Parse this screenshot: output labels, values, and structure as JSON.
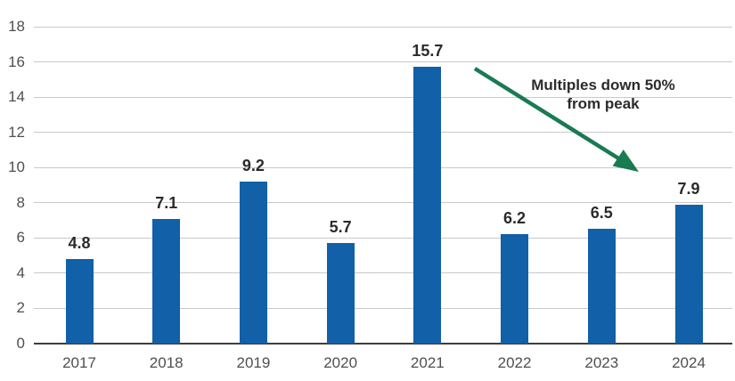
{
  "chart_data": {
    "type": "bar",
    "categories": [
      "2017",
      "2018",
      "2019",
      "2020",
      "2021",
      "2022",
      "2023",
      "2024"
    ],
    "values": [
      4.8,
      7.1,
      9.2,
      5.7,
      15.7,
      6.2,
      6.5,
      7.9
    ],
    "value_labels": [
      "4.8",
      "7.1",
      "9.2",
      "5.7",
      "15.7",
      "6.2",
      "6.5",
      "7.9"
    ],
    "title": "",
    "xlabel": "",
    "ylabel": "",
    "ylim": [
      0,
      18
    ],
    "yticks": [
      0,
      2,
      4,
      6,
      8,
      10,
      12,
      14,
      16,
      18
    ],
    "grid": true,
    "legend": "none",
    "annotation": {
      "line1": "Multiples down 50%",
      "line2": "from peak"
    }
  },
  "colors": {
    "bar": "#1160a8",
    "arrow": "#1a7a52",
    "gridline": "#c9c9c9",
    "zero_axis": "#3d3d3d",
    "axis_text": "#4f4f4f",
    "data_label_text": "#2b2b2b",
    "annotation_text": "#2b2b2b",
    "background": "#ffffff"
  }
}
